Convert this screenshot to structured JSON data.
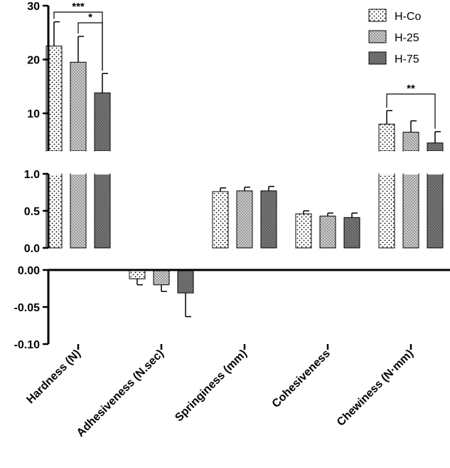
{
  "chart_data": {
    "type": "bar",
    "categories": [
      "Hardness (N)",
      "Adhesiveness (N.sec)",
      "Springiness (mm)",
      "Cohesiveness",
      "Chewiness (N·mm)"
    ],
    "series": [
      {
        "name": "H-Co",
        "values": [
          22.5,
          -0.012,
          0.76,
          0.46,
          8.0
        ],
        "errors": [
          4.5,
          0.008,
          0.05,
          0.04,
          2.5
        ],
        "color": "#ffffff",
        "pattern": "sparse-dots"
      },
      {
        "name": "H-25",
        "values": [
          19.5,
          -0.02,
          0.77,
          0.43,
          6.5
        ],
        "errors": [
          4.8,
          0.009,
          0.05,
          0.04,
          2.1
        ],
        "color": "#cfcfcf",
        "pattern": "dense-dots"
      },
      {
        "name": "H-75",
        "values": [
          13.8,
          -0.031,
          0.77,
          0.41,
          4.5
        ],
        "errors": [
          3.6,
          0.032,
          0.06,
          0.06,
          2.1
        ],
        "color": "#7a7a7a",
        "pattern": "dark-dots"
      }
    ],
    "panels": [
      {
        "id": "upper",
        "ylim": [
          3,
          30
        ],
        "ticks": [
          "10",
          "20",
          "30"
        ],
        "tick_values": [
          10,
          20,
          30
        ]
      },
      {
        "id": "middle",
        "ylim": [
          0,
          1
        ],
        "ticks": [
          "0.0",
          "0.5",
          "1.0"
        ],
        "tick_values": [
          0,
          0.5,
          1.0
        ]
      },
      {
        "id": "lower",
        "ylim": [
          -0.1,
          0
        ],
        "ticks": [
          "0.00",
          "-0.05",
          "-0.10"
        ],
        "tick_values": [
          0,
          -0.05,
          -0.1
        ]
      }
    ],
    "significance": [
      {
        "category": 0,
        "from": 0,
        "to": 2,
        "label": "***"
      },
      {
        "category": 0,
        "from": 1,
        "to": 2,
        "label": "*"
      },
      {
        "category": 4,
        "from": 0,
        "to": 2,
        "label": "**"
      }
    ],
    "legend": {
      "position": "top-right",
      "entries": [
        "H-Co",
        "H-25",
        "H-75"
      ]
    },
    "title": "",
    "xlabel": "",
    "ylabel": ""
  }
}
